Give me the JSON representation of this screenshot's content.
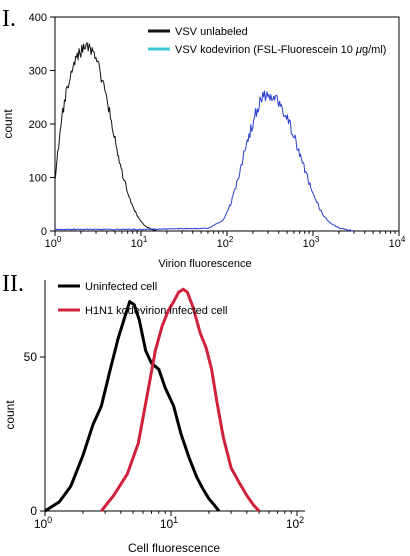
{
  "chart_data": [
    {
      "panel_label": "I.",
      "type": "line",
      "xlabel": "Virion fluorescence",
      "ylabel": "count",
      "x_scale": "log",
      "xlim": [
        1,
        10000
      ],
      "ylim": [
        0,
        400
      ],
      "x_ticks": [
        1,
        10,
        100,
        1000,
        10000
      ],
      "x_tick_base": "10",
      "x_tick_exponents": [
        "0",
        "1",
        "2",
        "3",
        "4"
      ],
      "y_ticks": [
        "0",
        "100",
        "200",
        "300",
        "400"
      ],
      "grid": false,
      "legend_position": "top-right",
      "series": [
        {
          "name": "VSV unlabeled",
          "color": "#111111",
          "x": [
            1.0,
            1.1,
            1.2,
            1.35,
            1.5,
            1.7,
            1.9,
            2.1,
            2.3,
            2.5,
            2.7,
            3.0,
            3.3,
            3.7,
            4.2,
            5.0,
            6.0,
            7.0,
            8.0,
            9.5,
            11.0,
            12.5,
            14.0,
            16.0
          ],
          "y": [
            90,
            160,
            215,
            260,
            290,
            315,
            330,
            340,
            348,
            345,
            335,
            320,
            300,
            270,
            230,
            170,
            110,
            72,
            45,
            22,
            10,
            5,
            2,
            0
          ]
        },
        {
          "name": "VSV kodevirion (FSL-Fluorescein 10 μg/ml)",
          "name_parts": {
            "before": "VSV kodevirion (FSL-Fluorescein 10 ",
            "mu": "μ",
            "after": "g/ml)"
          },
          "color": "#2a3fcf",
          "x": [
            1.0,
            10.0,
            60.0,
            90.0,
            110.0,
            130.0,
            150.0,
            180.0,
            220.0,
            260.0,
            300.0,
            350.0,
            400.0,
            480.0,
            560.0,
            650.0,
            750.0,
            900.0,
            1100.0,
            1300.0,
            1600.0,
            2000.0,
            2500.0,
            3000.0
          ],
          "y": [
            3,
            3,
            5,
            20,
            50,
            90,
            130,
            180,
            225,
            250,
            258,
            250,
            238,
            215,
            190,
            160,
            130,
            90,
            55,
            30,
            14,
            6,
            2,
            0
          ]
        }
      ],
      "extra_legend_colors": [
        "#3cc8d2"
      ]
    },
    {
      "panel_label": "II.",
      "type": "line",
      "xlabel": "Cell fluorescence",
      "ylabel": "count",
      "x_scale": "log",
      "xlim": [
        1,
        100
      ],
      "ylim": [
        0,
        75
      ],
      "x_ticks": [
        1,
        10,
        100
      ],
      "x_tick_base": "10",
      "x_tick_exponents": [
        "0",
        "1",
        "2"
      ],
      "y_ticks": [
        "0",
        "50"
      ],
      "grid": false,
      "legend_position": "top-left",
      "series": [
        {
          "name": "Uninfected cell",
          "color": "#000000",
          "x": [
            1.0,
            1.3,
            1.6,
            2.0,
            2.4,
            2.8,
            3.3,
            3.8,
            4.3,
            4.7,
            5.1,
            5.6,
            6.3,
            7.0,
            8.0,
            9.0,
            10.5,
            12.0,
            14.0,
            16.0,
            18.0,
            20.0,
            22.0,
            24.0
          ],
          "y": [
            0,
            3,
            8,
            18,
            28,
            34,
            46,
            56,
            63,
            68,
            67,
            62,
            52,
            48,
            46,
            40,
            34,
            25,
            17,
            11,
            7,
            4,
            2,
            0
          ]
        },
        {
          "name": "H1N1 kodevirion infected cell",
          "color": "#d0213a",
          "x": [
            2.8,
            3.5,
            4.5,
            5.5,
            6.5,
            7.5,
            8.5,
            9.5,
            10.5,
            11.5,
            12.5,
            13.5,
            15.0,
            17.0,
            19.0,
            21.0,
            23.0,
            26.0,
            30.0,
            35.0,
            40.0,
            45.0,
            50.0
          ],
          "y": [
            0,
            5,
            12,
            22,
            38,
            52,
            60,
            65,
            68,
            71,
            72,
            71,
            66,
            58,
            53,
            46,
            36,
            24,
            14,
            9,
            5,
            2,
            0
          ]
        }
      ]
    }
  ]
}
